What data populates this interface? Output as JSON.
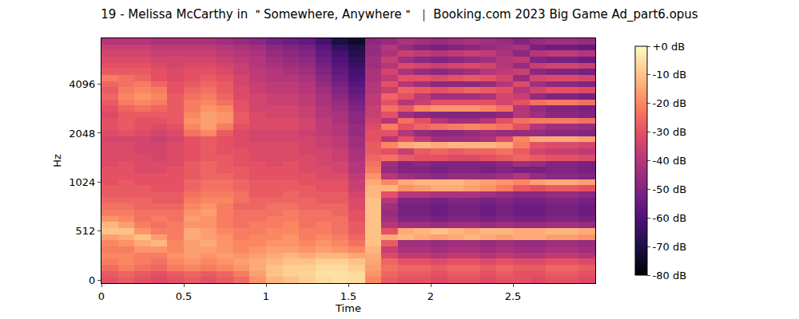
{
  "chart_data": {
    "type": "heatmap",
    "title": "19 - Melissa McCarthy in ＂Somewhere, Anywhere＂ ｜ Booking.com 2023 Big Game Ad_part6.opus",
    "x_label": "Time",
    "y_label": "Hz",
    "xlim": [
      0,
      3
    ],
    "xticks": [
      0,
      0.5,
      1,
      1.5,
      2,
      2.5
    ],
    "yticks": [
      0,
      512,
      1024,
      2048,
      4096
    ],
    "x": [
      0.05,
      0.15,
      0.25,
      0.35,
      0.45,
      0.55,
      0.65,
      0.75,
      0.85,
      0.95,
      1.05,
      1.15,
      1.25,
      1.35,
      1.45,
      1.55,
      1.65,
      1.75,
      1.85,
      1.95,
      2.05,
      2.15,
      2.25,
      2.35,
      2.45,
      2.55,
      2.65,
      2.75,
      2.85,
      2.95
    ],
    "y": [
      0,
      64,
      128,
      192,
      256,
      320,
      384,
      448,
      512,
      558,
      609,
      664,
      724,
      790,
      861,
      939,
      1024,
      1117,
      1218,
      1328,
      1448,
      1579,
      1722,
      1878,
      2048,
      2233,
      2435,
      2656,
      2896,
      3158,
      3444,
      3756,
      4096,
      4467,
      4871,
      5312,
      5793,
      6317,
      6889,
      7512
    ],
    "cells": [
      [
        -30,
        -28,
        -30,
        -32,
        -30,
        -28,
        -30,
        -28,
        -25,
        -18,
        -12,
        -10,
        -8,
        -6,
        -5,
        -6,
        -20,
        -28,
        -30,
        -30,
        -32,
        -30,
        -30,
        -32,
        -30,
        -30,
        -32,
        -30,
        -30,
        -32
      ],
      [
        -28,
        -26,
        -28,
        -30,
        -28,
        -26,
        -28,
        -26,
        -22,
        -16,
        -10,
        -8,
        -7,
        -5,
        -5,
        -6,
        -18,
        -26,
        -28,
        -28,
        -30,
        -28,
        -28,
        -30,
        -28,
        -30,
        -30,
        -28,
        -28,
        -30
      ],
      [
        -25,
        -22,
        -24,
        -26,
        -22,
        -20,
        -22,
        -20,
        -18,
        -14,
        -10,
        -8,
        -8,
        -6,
        -6,
        -8,
        -16,
        -24,
        -26,
        -26,
        -28,
        -26,
        -26,
        -28,
        -26,
        -28,
        -28,
        -26,
        -26,
        -28
      ],
      [
        -22,
        -20,
        -22,
        -24,
        -20,
        -18,
        -20,
        -18,
        -16,
        -14,
        -12,
        -10,
        -10,
        -8,
        -8,
        -10,
        -15,
        -26,
        -30,
        -30,
        -32,
        -30,
        -30,
        -32,
        -30,
        -32,
        -32,
        -30,
        -30,
        -32
      ],
      [
        -20,
        -20,
        -22,
        -22,
        -18,
        -16,
        -18,
        -16,
        -18,
        -16,
        -14,
        -12,
        -14,
        -12,
        -12,
        -15,
        -14,
        -32,
        -38,
        -38,
        -40,
        -38,
        -38,
        -40,
        -38,
        -40,
        -40,
        -38,
        -38,
        -40
      ],
      [
        -22,
        -22,
        -18,
        -18,
        -20,
        -16,
        -16,
        -18,
        -20,
        -18,
        -16,
        -16,
        -18,
        -16,
        -18,
        -20,
        -12,
        -36,
        -42,
        -42,
        -44,
        -42,
        -42,
        -44,
        -42,
        -44,
        -44,
        -42,
        -42,
        -44
      ],
      [
        -20,
        -18,
        -14,
        -12,
        -20,
        -16,
        -14,
        -18,
        -20,
        -20,
        -18,
        -18,
        -20,
        -18,
        -20,
        -24,
        -10,
        -28,
        -44,
        -44,
        -46,
        -44,
        -44,
        -46,
        -44,
        -46,
        -46,
        -44,
        -44,
        -46
      ],
      [
        -16,
        -14,
        -10,
        -16,
        -22,
        -14,
        -16,
        -18,
        -22,
        -20,
        -20,
        -18,
        -22,
        -20,
        -22,
        -26,
        -10,
        -14,
        -12,
        -14,
        -16,
        -14,
        -12,
        -14,
        -16,
        -14,
        -14,
        -16,
        -16,
        -18
      ],
      [
        -10,
        -10,
        -18,
        -22,
        -22,
        -14,
        -16,
        -20,
        -22,
        -22,
        -20,
        -20,
        -22,
        -22,
        -24,
        -28,
        -10,
        -30,
        -14,
        -12,
        -10,
        -12,
        -14,
        -12,
        -12,
        -14,
        -14,
        -12,
        -12,
        -14
      ],
      [
        -12,
        -16,
        -22,
        -24,
        -22,
        -18,
        -18,
        -22,
        -24,
        -22,
        -22,
        -20,
        -24,
        -22,
        -24,
        -28,
        -10,
        -40,
        -44,
        -44,
        -46,
        -44,
        -44,
        -46,
        -44,
        -46,
        -46,
        -44,
        -44,
        -46
      ],
      [
        -18,
        -20,
        -24,
        -22,
        -24,
        -16,
        -18,
        -22,
        -24,
        -24,
        -22,
        -22,
        -24,
        -24,
        -24,
        -30,
        -10,
        -44,
        -50,
        -50,
        -52,
        -50,
        -50,
        -52,
        -50,
        -52,
        -52,
        -50,
        -50,
        -52
      ],
      [
        -22,
        -22,
        -24,
        -24,
        -24,
        -18,
        -16,
        -22,
        -24,
        -24,
        -24,
        -22,
        -24,
        -24,
        -26,
        -30,
        -10,
        -46,
        -52,
        -52,
        -54,
        -52,
        -52,
        -54,
        -52,
        -54,
        -54,
        -52,
        -52,
        -54
      ],
      [
        -24,
        -24,
        -26,
        -26,
        -26,
        -20,
        -18,
        -22,
        -26,
        -26,
        -24,
        -24,
        -26,
        -26,
        -26,
        -32,
        -10,
        -44,
        -52,
        -52,
        -54,
        -52,
        -52,
        -54,
        -52,
        -54,
        -54,
        -52,
        -52,
        -54
      ],
      [
        -26,
        -26,
        -26,
        -28,
        -28,
        -22,
        -20,
        -20,
        -24,
        -26,
        -26,
        -26,
        -26,
        -28,
        -28,
        -32,
        -10,
        -40,
        -50,
        -50,
        -52,
        -50,
        -50,
        -52,
        -50,
        -52,
        -52,
        -50,
        -50,
        -52
      ],
      [
        -28,
        -28,
        -28,
        -28,
        -28,
        -24,
        -22,
        -22,
        -24,
        -28,
        -28,
        -26,
        -28,
        -28,
        -28,
        -34,
        -12,
        -30,
        -40,
        -40,
        -42,
        -42,
        -42,
        -44,
        -46,
        -48,
        -48,
        -46,
        -46,
        -48
      ],
      [
        -28,
        -28,
        -28,
        -30,
        -30,
        -26,
        -24,
        -24,
        -26,
        -28,
        -28,
        -28,
        -28,
        -30,
        -30,
        -36,
        -12,
        -12,
        -18,
        -16,
        -14,
        -14,
        -16,
        -18,
        -22,
        -28,
        -30,
        -28,
        -28,
        -30
      ],
      [
        -30,
        -28,
        -30,
        -30,
        -30,
        -26,
        -24,
        -24,
        -26,
        -28,
        -28,
        -28,
        -30,
        -30,
        -30,
        -36,
        -14,
        -20,
        -14,
        -12,
        -12,
        -12,
        -14,
        -16,
        -18,
        -20,
        -16,
        -14,
        -14,
        -16
      ],
      [
        -30,
        -30,
        -30,
        -30,
        -30,
        -28,
        -26,
        -26,
        -28,
        -30,
        -30,
        -30,
        -30,
        -32,
        -32,
        -38,
        -18,
        -40,
        -44,
        -46,
        -48,
        -46,
        -46,
        -46,
        -44,
        -40,
        -46,
        -48,
        -48,
        -50
      ],
      [
        -30,
        -30,
        -32,
        -32,
        -30,
        -28,
        -26,
        -28,
        -28,
        -30,
        -30,
        -30,
        -32,
        -32,
        -34,
        -40,
        -22,
        -46,
        -50,
        -50,
        -52,
        -50,
        -50,
        -52,
        -50,
        -52,
        -52,
        -50,
        -50,
        -52
      ],
      [
        -32,
        -30,
        -32,
        -32,
        -32,
        -28,
        -26,
        -28,
        -30,
        -30,
        -32,
        -30,
        -32,
        -34,
        -34,
        -40,
        -24,
        -44,
        -50,
        -48,
        -50,
        -50,
        -50,
        -50,
        -48,
        -44,
        -46,
        -50,
        -50,
        -52
      ],
      [
        -32,
        -32,
        -32,
        -34,
        -32,
        -30,
        -28,
        -28,
        -30,
        -32,
        -32,
        -32,
        -32,
        -34,
        -36,
        -42,
        -26,
        -24,
        -28,
        -30,
        -30,
        -32,
        -32,
        -30,
        -28,
        -26,
        -28,
        -30,
        -30,
        -32
      ],
      [
        -32,
        -32,
        -34,
        -34,
        -32,
        -30,
        -28,
        -30,
        -30,
        -32,
        -32,
        -32,
        -34,
        -34,
        -36,
        -42,
        -28,
        -30,
        -36,
        -28,
        -26,
        -28,
        -26,
        -26,
        -24,
        -28,
        -34,
        -36,
        -36,
        -38
      ],
      [
        -32,
        -32,
        -34,
        -34,
        -32,
        -30,
        -28,
        -30,
        -32,
        -32,
        -32,
        -32,
        -34,
        -36,
        -38,
        -44,
        -28,
        -20,
        -14,
        -12,
        -14,
        -12,
        -12,
        -12,
        -14,
        -22,
        -30,
        -32,
        -32,
        -34
      ],
      [
        -34,
        -34,
        -34,
        -36,
        -34,
        -30,
        -28,
        -30,
        -32,
        -34,
        -34,
        -34,
        -34,
        -36,
        -38,
        -44,
        -30,
        -40,
        -30,
        -38,
        -44,
        -44,
        -44,
        -42,
        -32,
        -20,
        -14,
        -14,
        -14,
        -16
      ],
      [
        -32,
        -30,
        -32,
        -34,
        -32,
        -24,
        -20,
        -28,
        -32,
        -34,
        -34,
        -34,
        -36,
        -38,
        -40,
        -46,
        -30,
        -30,
        -40,
        -46,
        -48,
        -48,
        -46,
        -44,
        -46,
        -46,
        -46,
        -48,
        -48,
        -50
      ],
      [
        -30,
        -28,
        -30,
        -32,
        -30,
        -20,
        -16,
        -22,
        -30,
        -32,
        -32,
        -32,
        -34,
        -38,
        -40,
        -46,
        -32,
        -22,
        -30,
        -26,
        -24,
        -22,
        -20,
        -22,
        -24,
        -30,
        -40,
        -44,
        -44,
        -46
      ],
      [
        -30,
        -28,
        -30,
        -30,
        -28,
        -18,
        -16,
        -18,
        -28,
        -32,
        -32,
        -32,
        -34,
        -38,
        -42,
        -48,
        -34,
        -40,
        -24,
        -30,
        -40,
        -44,
        -44,
        -40,
        -30,
        -24,
        -22,
        -22,
        -22,
        -24
      ],
      [
        -32,
        -28,
        -28,
        -28,
        -28,
        -20,
        -16,
        -18,
        -28,
        -32,
        -34,
        -34,
        -36,
        -40,
        -42,
        -48,
        -36,
        -30,
        -44,
        -48,
        -50,
        -50,
        -50,
        -50,
        -48,
        -40,
        -44,
        -48,
        -48,
        -50
      ],
      [
        -30,
        -26,
        -24,
        -26,
        -28,
        -22,
        -18,
        -20,
        -30,
        -34,
        -34,
        -34,
        -36,
        -40,
        -44,
        -50,
        -36,
        -24,
        -28,
        -20,
        -18,
        -18,
        -18,
        -20,
        -24,
        -40,
        -46,
        -50,
        -50,
        -52
      ],
      [
        -28,
        -22,
        -20,
        -22,
        -28,
        -22,
        -20,
        -24,
        -30,
        -34,
        -36,
        -36,
        -38,
        -42,
        -46,
        -52,
        -38,
        -30,
        -40,
        -36,
        -30,
        -30,
        -30,
        -30,
        -34,
        -30,
        -24,
        -22,
        -22,
        -24
      ],
      [
        -26,
        -20,
        -18,
        -20,
        -28,
        -24,
        -22,
        -26,
        -32,
        -34,
        -36,
        -36,
        -38,
        -42,
        -48,
        -54,
        -38,
        -26,
        -30,
        -38,
        -44,
        -44,
        -44,
        -42,
        -34,
        -36,
        -46,
        -50,
        -50,
        -52
      ],
      [
        -28,
        -22,
        -20,
        -22,
        -30,
        -26,
        -24,
        -28,
        -32,
        -36,
        -38,
        -38,
        -40,
        -44,
        -50,
        -56,
        -40,
        -36,
        -26,
        -28,
        -30,
        -28,
        -26,
        -28,
        -30,
        -40,
        -34,
        -30,
        -30,
        -32
      ],
      [
        -26,
        -24,
        -22,
        -26,
        -30,
        -28,
        -26,
        -28,
        -34,
        -36,
        -38,
        -38,
        -40,
        -46,
        -52,
        -58,
        -40,
        -30,
        -40,
        -44,
        -48,
        -48,
        -48,
        -46,
        -40,
        -32,
        -44,
        -48,
        -48,
        -50
      ],
      [
        -22,
        -24,
        -26,
        -30,
        -32,
        -30,
        -28,
        -30,
        -34,
        -38,
        -40,
        -40,
        -42,
        -48,
        -54,
        -60,
        -42,
        -38,
        -30,
        -30,
        -32,
        -30,
        -28,
        -30,
        -34,
        -46,
        -34,
        -32,
        -32,
        -34
      ],
      [
        -28,
        -28,
        -28,
        -30,
        -32,
        -30,
        -30,
        -32,
        -36,
        -38,
        -40,
        -42,
        -44,
        -50,
        -56,
        -62,
        -42,
        -34,
        -42,
        -46,
        -48,
        -46,
        -44,
        -40,
        -38,
        -36,
        -48,
        -50,
        -50,
        -52
      ],
      [
        -30,
        -30,
        -30,
        -32,
        -34,
        -32,
        -32,
        -34,
        -36,
        -40,
        -42,
        -44,
        -46,
        -52,
        -58,
        -64,
        -44,
        -40,
        -32,
        -34,
        -36,
        -34,
        -32,
        -34,
        -40,
        -46,
        -36,
        -34,
        -34,
        -36
      ],
      [
        -32,
        -32,
        -32,
        -34,
        -34,
        -34,
        -34,
        -36,
        -38,
        -40,
        -44,
        -46,
        -48,
        -54,
        -60,
        -66,
        -44,
        -36,
        -44,
        -48,
        -50,
        -48,
        -46,
        -44,
        -40,
        -38,
        -50,
        -52,
        -52,
        -54
      ],
      [
        -34,
        -34,
        -34,
        -36,
        -36,
        -36,
        -36,
        -38,
        -40,
        -42,
        -46,
        -48,
        -50,
        -56,
        -62,
        -68,
        -46,
        -42,
        -36,
        -38,
        -40,
        -38,
        -36,
        -38,
        -42,
        -48,
        -40,
        -38,
        -38,
        -40
      ],
      [
        -36,
        -36,
        -36,
        -38,
        -38,
        -38,
        -38,
        -40,
        -42,
        -44,
        -48,
        -50,
        -52,
        -58,
        -66,
        -70,
        -46,
        -40,
        -46,
        -50,
        -52,
        -50,
        -48,
        -46,
        -44,
        -42,
        -52,
        -54,
        -54,
        -56
      ],
      [
        -40,
        -40,
        -40,
        -42,
        -42,
        -42,
        -42,
        -44,
        -46,
        -48,
        -52,
        -54,
        -56,
        -62,
        -70,
        -74,
        -48,
        -46,
        -42,
        -44,
        -46,
        -44,
        -42,
        -44,
        -46,
        -50,
        -46,
        -44,
        -44,
        -46
      ]
    ],
    "colorbar_range": [
      -80,
      0
    ],
    "colorbar_ticks": [
      {
        "value": 0,
        "label": "+0 dB"
      },
      {
        "value": -10,
        "label": "-10 dB"
      },
      {
        "value": -20,
        "label": "-20 dB"
      },
      {
        "value": -30,
        "label": "-30 dB"
      },
      {
        "value": -40,
        "label": "-40 dB"
      },
      {
        "value": -50,
        "label": "-50 dB"
      },
      {
        "value": -60,
        "label": "-60 dB"
      },
      {
        "value": -70,
        "label": "-70 dB"
      },
      {
        "value": -80,
        "label": "-80 dB"
      }
    ]
  }
}
